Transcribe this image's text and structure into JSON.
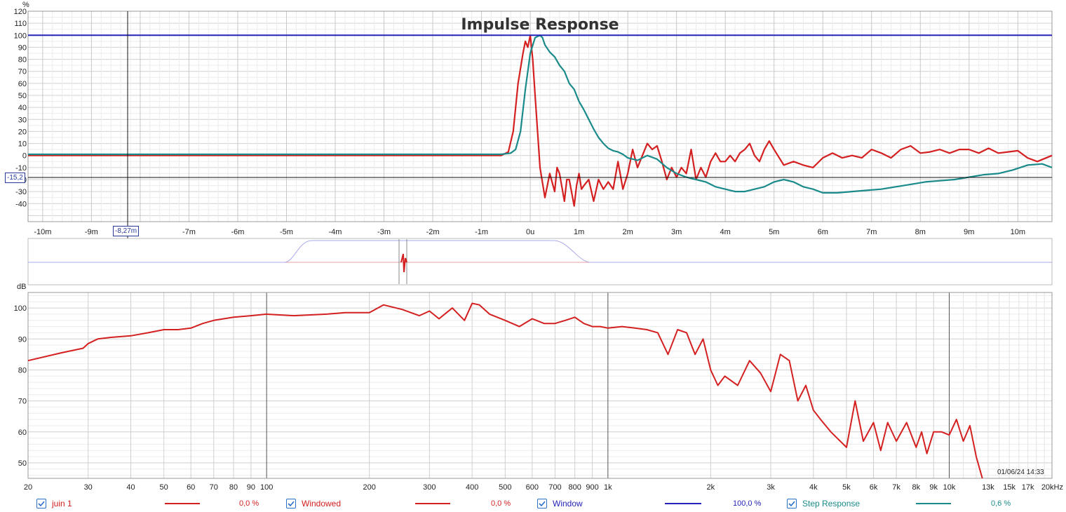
{
  "impulse": {
    "title": "Impulse Response",
    "y_unit": "%",
    "y_ticks": [
      "120",
      "110",
      "100",
      "90",
      "80",
      "70",
      "60",
      "50",
      "40",
      "30",
      "20",
      "10",
      "0",
      "-10",
      "-20",
      "-30",
      "-40"
    ],
    "x_ticks": [
      "-10m",
      "-9m",
      "-8,27m",
      "-7m",
      "-6m",
      "-5m",
      "-4m",
      "-3m",
      "-2m",
      "-1m",
      "0u",
      "1m",
      "2m",
      "3m",
      "4m",
      "5m",
      "6m",
      "7m",
      "8m",
      "9m",
      "10m"
    ],
    "cursor_x_label": "-8,27m",
    "cursor_y_label": "-15,2"
  },
  "spl": {
    "y_unit": "dB",
    "y_ticks": [
      "100",
      "90",
      "80",
      "70",
      "60",
      "50"
    ],
    "x_ticks": [
      "20",
      "30",
      "40",
      "50",
      "60",
      "70",
      "80",
      "90",
      "100",
      "200",
      "300",
      "400",
      "500",
      "600",
      "700",
      "800",
      "900",
      "1k",
      "2k",
      "3k",
      "4k",
      "5k",
      "6k",
      "7k",
      "8k",
      "9k",
      "10k",
      "13k",
      "15k",
      "17k",
      "20kHz"
    ],
    "timestamp": "01/06/24 14:33"
  },
  "legend": [
    {
      "label": "juin 1",
      "value": "0,0 %",
      "color": "#d42020",
      "checked": true
    },
    {
      "label": "Windowed",
      "value": "0,0 %",
      "color": "#d42020",
      "checked": true
    },
    {
      "label": "Window",
      "value": "100,0 %",
      "color": "#2424b8",
      "checked": true
    },
    {
      "label": "Step Response",
      "value": "0,6 %",
      "color": "#1a8a8a",
      "checked": true
    }
  ],
  "chart_data": [
    {
      "type": "line",
      "title": "Impulse Response",
      "xlabel": "",
      "ylabel": "%",
      "xlim": [
        -10.3,
        10.7
      ],
      "ylim": [
        -55,
        120
      ],
      "x_unit": "ms",
      "series": [
        {
          "name": "Windowed",
          "color": "#d42020",
          "x": [
            -10.3,
            -0.6,
            -0.45,
            -0.35,
            -0.25,
            -0.15,
            -0.1,
            -0.05,
            0,
            0.05,
            0.1,
            0.15,
            0.2,
            0.3,
            0.4,
            0.5,
            0.55,
            0.6,
            0.7,
            0.75,
            0.8,
            0.9,
            0.95,
            1.0,
            1.05,
            1.1,
            1.2,
            1.3,
            1.4,
            1.5,
            1.6,
            1.7,
            1.8,
            1.9,
            2.0,
            2.1,
            2.2,
            2.3,
            2.4,
            2.5,
            2.6,
            2.7,
            2.8,
            2.9,
            3.0,
            3.1,
            3.2,
            3.3,
            3.4,
            3.5,
            3.6,
            3.7,
            3.8,
            3.9,
            4.0,
            4.1,
            4.2,
            4.3,
            4.4,
            4.5,
            4.6,
            4.7,
            4.8,
            4.9,
            5.0,
            5.2,
            5.4,
            5.6,
            5.8,
            6.0,
            6.2,
            6.4,
            6.6,
            6.8,
            7.0,
            7.2,
            7.4,
            7.6,
            7.8,
            8.0,
            8.2,
            8.4,
            8.6,
            8.8,
            9.0,
            9.2,
            9.4,
            9.6,
            9.8,
            10.0,
            10.2,
            10.4,
            10.7
          ],
          "y": [
            0,
            0,
            3,
            20,
            60,
            85,
            95,
            90,
            100,
            80,
            50,
            20,
            -10,
            -35,
            -15,
            -30,
            -10,
            -15,
            -38,
            -20,
            -20,
            -42,
            -25,
            -15,
            -28,
            -25,
            -20,
            -38,
            -20,
            -28,
            -22,
            -28,
            -5,
            -28,
            -15,
            5,
            -10,
            0,
            10,
            5,
            8,
            -5,
            -20,
            -10,
            -18,
            -10,
            -15,
            5,
            -20,
            -10,
            -18,
            -5,
            2,
            -5,
            -5,
            0,
            -5,
            2,
            5,
            10,
            0,
            -5,
            5,
            12,
            5,
            -8,
            -5,
            -8,
            -10,
            -2,
            2,
            -2,
            0,
            -2,
            5,
            2,
            -2,
            5,
            8,
            2,
            3,
            5,
            2,
            5,
            5,
            2,
            6,
            2,
            3,
            4,
            -2,
            -5,
            0
          ]
        },
        {
          "name": "Step Response",
          "color": "#1a8a8a",
          "x": [
            -10.3,
            -0.6,
            -0.4,
            -0.3,
            -0.2,
            -0.1,
            0,
            0.1,
            0.2,
            0.25,
            0.3,
            0.4,
            0.5,
            0.6,
            0.7,
            0.8,
            0.9,
            1.0,
            1.1,
            1.2,
            1.3,
            1.4,
            1.5,
            1.6,
            1.7,
            1.8,
            1.9,
            2.0,
            2.2,
            2.4,
            2.6,
            2.8,
            3.0,
            3.2,
            3.4,
            3.6,
            3.8,
            4.0,
            4.2,
            4.4,
            4.6,
            4.8,
            5.0,
            5.2,
            5.4,
            5.6,
            5.8,
            6.0,
            6.3,
            6.6,
            6.9,
            7.2,
            7.5,
            7.8,
            8.1,
            8.4,
            8.7,
            9.0,
            9.3,
            9.6,
            9.9,
            10.2,
            10.5,
            10.7
          ],
          "y": [
            1,
            1,
            2,
            5,
            20,
            55,
            85,
            98,
            100,
            98,
            92,
            86,
            82,
            75,
            70,
            60,
            55,
            45,
            38,
            30,
            22,
            15,
            10,
            6,
            4,
            3,
            1,
            -2,
            -4,
            0,
            -3,
            -10,
            -15,
            -18,
            -20,
            -22,
            -26,
            -28,
            -30,
            -30,
            -28,
            -26,
            -22,
            -20,
            -22,
            -26,
            -28,
            -31,
            -31,
            -30,
            -29,
            -28,
            -26,
            -24,
            -22,
            -21,
            -20,
            -18,
            -16,
            -15,
            -12,
            -8,
            -7,
            -10
          ]
        },
        {
          "name": "Window",
          "color": "#2424b8",
          "x": [
            -10.3,
            10.7
          ],
          "y": [
            100,
            100
          ]
        }
      ]
    },
    {
      "type": "line",
      "title": "",
      "xlabel": "",
      "ylabel": "dB",
      "x_scale": "log",
      "xlim": [
        20,
        20000
      ],
      "ylim": [
        45,
        105
      ],
      "series": [
        {
          "name": "juin 1",
          "color": "#d42020",
          "x": [
            20,
            25,
            29,
            30,
            32,
            35,
            40,
            45,
            50,
            55,
            60,
            65,
            70,
            80,
            90,
            100,
            120,
            150,
            170,
            200,
            220,
            250,
            280,
            300,
            320,
            350,
            380,
            400,
            420,
            450,
            500,
            550,
            600,
            650,
            700,
            750,
            800,
            850,
            900,
            950,
            1000,
            1100,
            1200,
            1300,
            1400,
            1500,
            1600,
            1700,
            1800,
            1900,
            2000,
            2100,
            2200,
            2400,
            2600,
            2800,
            3000,
            3200,
            3400,
            3600,
            3800,
            4000,
            4200,
            4500,
            5000,
            5300,
            5600,
            6000,
            6300,
            6600,
            7000,
            7500,
            8000,
            8300,
            8600,
            9000,
            9500,
            10000,
            10500,
            11000,
            11500,
            12000,
            12500
          ],
          "y": [
            83,
            85.5,
            87,
            88.5,
            90,
            90.5,
            91,
            92,
            93,
            93,
            93.5,
            95,
            96,
            97,
            97.5,
            98,
            97.5,
            98,
            98.5,
            98.5,
            101,
            99.5,
            97.5,
            99,
            96.5,
            100,
            96,
            101.5,
            101,
            98,
            96,
            94,
            96.5,
            95,
            95,
            96,
            97,
            95,
            94,
            94,
            93.5,
            94,
            93.5,
            93,
            92,
            85,
            93,
            92,
            85,
            90,
            80,
            75,
            78,
            75,
            83,
            79,
            73,
            85,
            83,
            70,
            75,
            67,
            64,
            60,
            55,
            70,
            57,
            63,
            54,
            63,
            57,
            63,
            55,
            60,
            53,
            60,
            60,
            59,
            64,
            57,
            62,
            52,
            45
          ]
        }
      ]
    }
  ]
}
